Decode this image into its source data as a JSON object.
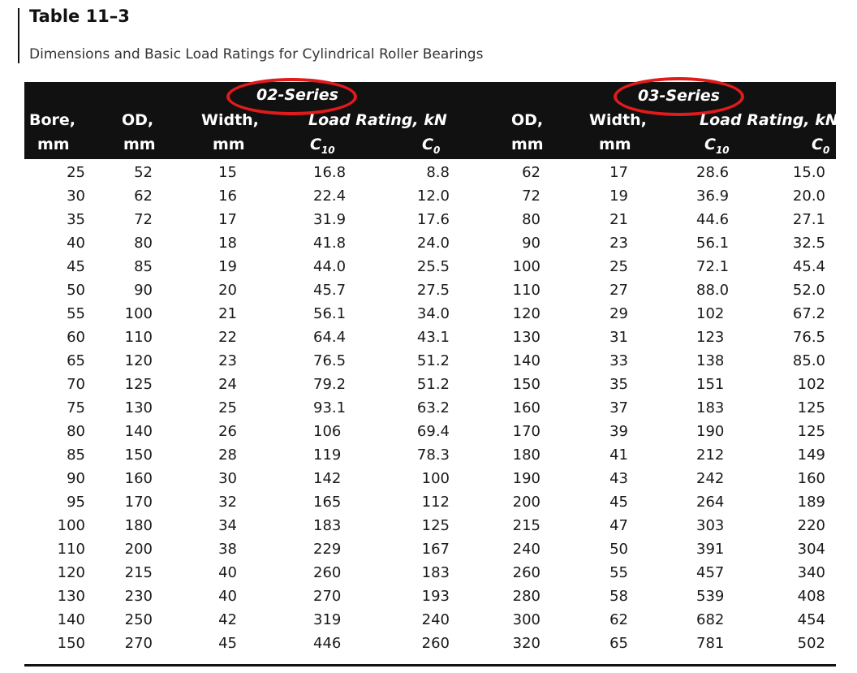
{
  "title": "Table 11–3",
  "subtitle": "Dimensions and Basic Load Ratings for Cylindrical Roller Bearings",
  "header": {
    "series_02": "02-Series",
    "series_03": "03-Series",
    "bore": "Bore,",
    "bore_unit": "mm",
    "od": "OD,",
    "od_unit": "mm",
    "width": "Width,",
    "width_unit": "mm",
    "load_rating": "Load Rating, kN",
    "c10_base": "C",
    "c10_sub": "10",
    "c0_base": "C",
    "c0_sub": "0",
    "highlight_color": "#e11b1b"
  },
  "rows": [
    [
      "25",
      "52",
      "15",
      "16.8",
      "8.8",
      "62",
      "17",
      "28.6",
      "15.0"
    ],
    [
      "30",
      "62",
      "16",
      "22.4",
      "12.0",
      "72",
      "19",
      "36.9",
      "20.0"
    ],
    [
      "35",
      "72",
      "17",
      "31.9",
      "17.6",
      "80",
      "21",
      "44.6",
      "27.1"
    ],
    [
      "40",
      "80",
      "18",
      "41.8",
      "24.0",
      "90",
      "23",
      "56.1",
      "32.5"
    ],
    [
      "45",
      "85",
      "19",
      "44.0",
      "25.5",
      "100",
      "25",
      "72.1",
      "45.4"
    ],
    [
      "50",
      "90",
      "20",
      "45.7",
      "27.5",
      "110",
      "27",
      "88.0",
      "52.0"
    ],
    [
      "55",
      "100",
      "21",
      "56.1",
      "34.0",
      "120",
      "29",
      "102",
      "67.2"
    ],
    [
      "60",
      "110",
      "22",
      "64.4",
      "43.1",
      "130",
      "31",
      "123",
      "76.5"
    ],
    [
      "65",
      "120",
      "23",
      "76.5",
      "51.2",
      "140",
      "33",
      "138",
      "85.0"
    ],
    [
      "70",
      "125",
      "24",
      "79.2",
      "51.2",
      "150",
      "35",
      "151",
      "102"
    ],
    [
      "75",
      "130",
      "25",
      "93.1",
      "63.2",
      "160",
      "37",
      "183",
      "125"
    ],
    [
      "80",
      "140",
      "26",
      "106",
      "69.4",
      "170",
      "39",
      "190",
      "125"
    ],
    [
      "85",
      "150",
      "28",
      "119",
      "78.3",
      "180",
      "41",
      "212",
      "149"
    ],
    [
      "90",
      "160",
      "30",
      "142",
      "100",
      "190",
      "43",
      "242",
      "160"
    ],
    [
      "95",
      "170",
      "32",
      "165",
      "112",
      "200",
      "45",
      "264",
      "189"
    ],
    [
      "100",
      "180",
      "34",
      "183",
      "125",
      "215",
      "47",
      "303",
      "220"
    ],
    [
      "110",
      "200",
      "38",
      "229",
      "167",
      "240",
      "50",
      "391",
      "304"
    ],
    [
      "120",
      "215",
      "40",
      "260",
      "183",
      "260",
      "55",
      "457",
      "340"
    ],
    [
      "130",
      "230",
      "40",
      "270",
      "193",
      "280",
      "58",
      "539",
      "408"
    ],
    [
      "140",
      "250",
      "42",
      "319",
      "240",
      "300",
      "62",
      "682",
      "454"
    ],
    [
      "150",
      "270",
      "45",
      "446",
      "260",
      "320",
      "65",
      "781",
      "502"
    ]
  ]
}
